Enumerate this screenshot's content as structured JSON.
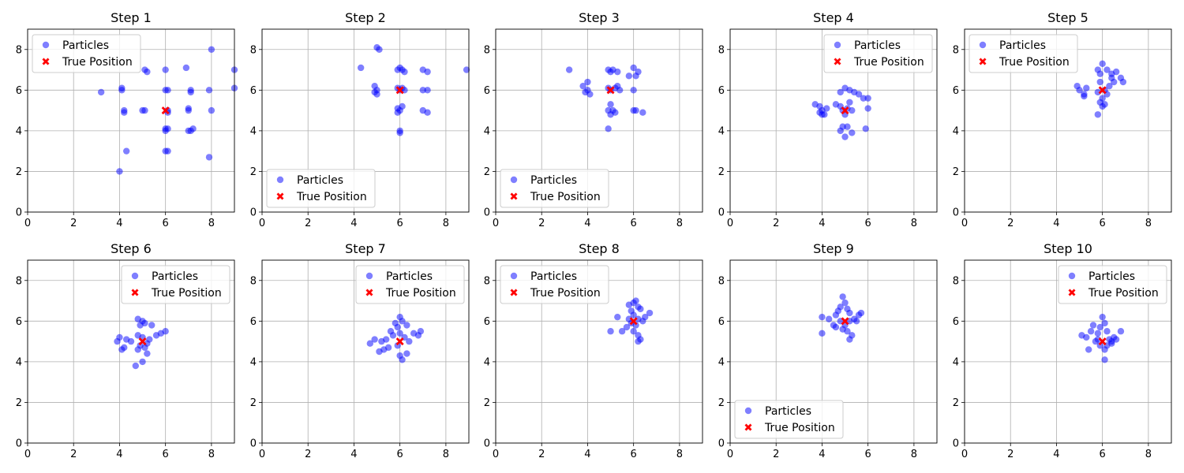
{
  "colors": {
    "particles": "#0000ff",
    "true_position": "#ff0000",
    "grid": "#b0b0b0",
    "axes": "#000000"
  },
  "legend_labels": {
    "particles": "Particles",
    "true_position": "True Position"
  },
  "chart_data": [
    {
      "type": "scatter",
      "title": "Step 1",
      "xlim": [
        0,
        9
      ],
      "ylim": [
        0,
        9
      ],
      "xticks": [
        0,
        2,
        4,
        6,
        8
      ],
      "yticks": [
        0,
        2,
        4,
        6,
        8
      ],
      "grid": true,
      "legend_position": "top-left",
      "true_position": [
        6,
        5
      ],
      "particles": [
        [
          3.2,
          5.9
        ],
        [
          4.1,
          6.1
        ],
        [
          4.1,
          6.0
        ],
        [
          4.2,
          5.0
        ],
        [
          4.2,
          4.9
        ],
        [
          4.3,
          3.0
        ],
        [
          4.0,
          2.0
        ],
        [
          5.0,
          5.0
        ],
        [
          5.1,
          5.0
        ],
        [
          5.1,
          7.0
        ],
        [
          5.2,
          6.9
        ],
        [
          6.0,
          7.0
        ],
        [
          6.0,
          6.0
        ],
        [
          6.1,
          6.0
        ],
        [
          6.0,
          4.1
        ],
        [
          6.0,
          4.0
        ],
        [
          6.1,
          4.1
        ],
        [
          6.0,
          3.0
        ],
        [
          6.1,
          3.0
        ],
        [
          6.1,
          4.9
        ],
        [
          6.1,
          5.0
        ],
        [
          6.9,
          7.1
        ],
        [
          7.0,
          5.1
        ],
        [
          7.0,
          5.0
        ],
        [
          7.1,
          6.0
        ],
        [
          7.1,
          5.9
        ],
        [
          7.0,
          4.0
        ],
        [
          7.1,
          4.0
        ],
        [
          7.2,
          4.1
        ],
        [
          7.9,
          2.7
        ],
        [
          7.9,
          6.0
        ],
        [
          8.0,
          8.0
        ],
        [
          8.0,
          5.0
        ],
        [
          9.0,
          7.0
        ],
        [
          9.0,
          6.1
        ]
      ]
    },
    {
      "type": "scatter",
      "title": "Step 2",
      "xlim": [
        0,
        9
      ],
      "ylim": [
        0,
        9
      ],
      "xticks": [
        0,
        2,
        4,
        6,
        8
      ],
      "yticks": [
        0,
        2,
        4,
        6,
        8
      ],
      "grid": true,
      "legend_position": "bottom-left",
      "true_position": [
        6,
        6
      ],
      "particles": [
        [
          4.3,
          7.1
        ],
        [
          4.9,
          6.2
        ],
        [
          5.0,
          6.0
        ],
        [
          4.9,
          5.9
        ],
        [
          5.0,
          5.8
        ],
        [
          5.1,
          8.0
        ],
        [
          5.0,
          8.1
        ],
        [
          5.9,
          7.0
        ],
        [
          6.0,
          7.1
        ],
        [
          6.1,
          7.0
        ],
        [
          6.2,
          6.9
        ],
        [
          5.9,
          6.1
        ],
        [
          6.0,
          6.0
        ],
        [
          6.1,
          6.1
        ],
        [
          6.2,
          6.0
        ],
        [
          5.9,
          5.1
        ],
        [
          6.0,
          5.0
        ],
        [
          6.1,
          5.2
        ],
        [
          5.9,
          4.9
        ],
        [
          6.0,
          4.0
        ],
        [
          6.0,
          3.9
        ],
        [
          7.0,
          7.0
        ],
        [
          7.2,
          6.9
        ],
        [
          7.0,
          6.0
        ],
        [
          7.2,
          6.0
        ],
        [
          7.0,
          5.0
        ],
        [
          7.2,
          4.9
        ],
        [
          8.9,
          7.0
        ]
      ]
    },
    {
      "type": "scatter",
      "title": "Step 3",
      "xlim": [
        0,
        9
      ],
      "ylim": [
        0,
        9
      ],
      "xticks": [
        0,
        2,
        4,
        6,
        8
      ],
      "yticks": [
        0,
        2,
        4,
        6,
        8
      ],
      "grid": true,
      "legend_position": "bottom-left",
      "true_position": [
        5,
        6
      ],
      "particles": [
        [
          3.2,
          7.0
        ],
        [
          3.8,
          6.2
        ],
        [
          3.9,
          5.9
        ],
        [
          4.0,
          6.4
        ],
        [
          4.1,
          5.8
        ],
        [
          4.0,
          6.0
        ],
        [
          4.9,
          7.0
        ],
        [
          5.0,
          6.9
        ],
        [
          5.1,
          7.0
        ],
        [
          5.3,
          6.9
        ],
        [
          4.9,
          6.1
        ],
        [
          5.0,
          6.0
        ],
        [
          5.2,
          6.1
        ],
        [
          5.3,
          6.2
        ],
        [
          5.4,
          6.0
        ],
        [
          5.0,
          5.3
        ],
        [
          5.1,
          5.0
        ],
        [
          4.9,
          5.0
        ],
        [
          5.0,
          4.8
        ],
        [
          5.2,
          4.9
        ],
        [
          4.9,
          4.1
        ],
        [
          5.8,
          6.7
        ],
        [
          6.0,
          7.1
        ],
        [
          6.2,
          6.9
        ],
        [
          6.1,
          6.7
        ],
        [
          6.0,
          6.0
        ],
        [
          6.1,
          5.0
        ],
        [
          6.0,
          5.0
        ],
        [
          6.4,
          4.9
        ]
      ]
    },
    {
      "type": "scatter",
      "title": "Step 4",
      "xlim": [
        0,
        9
      ],
      "ylim": [
        0,
        9
      ],
      "xticks": [
        0,
        2,
        4,
        6,
        8
      ],
      "yticks": [
        0,
        2,
        4,
        6,
        8
      ],
      "grid": true,
      "legend_position": "top-right",
      "true_position": [
        5,
        5
      ],
      "particles": [
        [
          3.7,
          5.3
        ],
        [
          3.9,
          5.2
        ],
        [
          3.9,
          4.9
        ],
        [
          4.0,
          5.0
        ],
        [
          4.1,
          4.8
        ],
        [
          4.2,
          5.1
        ],
        [
          4.0,
          4.8
        ],
        [
          4.6,
          5.3
        ],
        [
          4.8,
          5.2
        ],
        [
          4.9,
          5.0
        ],
        [
          5.0,
          4.8
        ],
        [
          5.1,
          5.1
        ],
        [
          5.2,
          5.4
        ],
        [
          5.3,
          5.0
        ],
        [
          4.8,
          5.9
        ],
        [
          5.0,
          6.1
        ],
        [
          5.2,
          6.0
        ],
        [
          5.4,
          5.9
        ],
        [
          5.6,
          5.8
        ],
        [
          5.8,
          5.6
        ],
        [
          4.9,
          4.2
        ],
        [
          5.1,
          4.2
        ],
        [
          4.8,
          4.0
        ],
        [
          5.0,
          3.7
        ],
        [
          5.3,
          3.9
        ],
        [
          5.9,
          4.1
        ],
        [
          6.0,
          5.1
        ],
        [
          6.0,
          5.6
        ]
      ]
    },
    {
      "type": "scatter",
      "title": "Step 5",
      "xlim": [
        0,
        9
      ],
      "ylim": [
        0,
        9
      ],
      "xticks": [
        0,
        2,
        4,
        6,
        8
      ],
      "yticks": [
        0,
        2,
        4,
        6,
        8
      ],
      "grid": true,
      "legend_position": "top-left",
      "true_position": [
        6,
        6
      ],
      "particles": [
        [
          4.9,
          6.2
        ],
        [
          5.0,
          6.0
        ],
        [
          5.2,
          5.8
        ],
        [
          5.3,
          6.1
        ],
        [
          5.2,
          5.7
        ],
        [
          5.8,
          7.0
        ],
        [
          5.9,
          6.8
        ],
        [
          6.0,
          7.3
        ],
        [
          6.2,
          7.0
        ],
        [
          6.4,
          6.8
        ],
        [
          6.6,
          6.9
        ],
        [
          6.8,
          6.6
        ],
        [
          6.9,
          6.4
        ],
        [
          5.9,
          6.4
        ],
        [
          6.1,
          6.0
        ],
        [
          6.3,
          6.2
        ],
        [
          6.5,
          6.4
        ],
        [
          5.8,
          5.9
        ],
        [
          6.0,
          5.6
        ],
        [
          6.2,
          5.8
        ],
        [
          5.9,
          5.4
        ],
        [
          6.0,
          5.2
        ],
        [
          6.1,
          5.3
        ],
        [
          5.8,
          4.8
        ],
        [
          6.4,
          6.6
        ]
      ]
    },
    {
      "type": "scatter",
      "title": "Step 6",
      "xlim": [
        0,
        9
      ],
      "ylim": [
        0,
        9
      ],
      "xticks": [
        0,
        2,
        4,
        6,
        8
      ],
      "yticks": [
        0,
        2,
        4,
        6,
        8
      ],
      "grid": true,
      "legend_position": "top-right",
      "true_position": [
        5,
        5
      ],
      "particles": [
        [
          3.9,
          5.0
        ],
        [
          4.0,
          5.2
        ],
        [
          4.2,
          4.7
        ],
        [
          4.3,
          5.1
        ],
        [
          4.1,
          4.6
        ],
        [
          4.8,
          6.1
        ],
        [
          5.0,
          6.0
        ],
        [
          4.9,
          5.8
        ],
        [
          5.1,
          5.9
        ],
        [
          5.4,
          5.8
        ],
        [
          4.8,
          5.3
        ],
        [
          5.0,
          5.2
        ],
        [
          5.3,
          5.1
        ],
        [
          5.6,
          5.3
        ],
        [
          5.8,
          5.4
        ],
        [
          6.0,
          5.5
        ],
        [
          4.9,
          4.8
        ],
        [
          5.1,
          4.7
        ],
        [
          5.2,
          4.4
        ],
        [
          4.8,
          4.6
        ],
        [
          5.0,
          4.0
        ],
        [
          4.7,
          3.8
        ],
        [
          5.2,
          4.9
        ],
        [
          4.5,
          5.0
        ]
      ]
    },
    {
      "type": "scatter",
      "title": "Step 7",
      "xlim": [
        0,
        9
      ],
      "ylim": [
        0,
        9
      ],
      "xticks": [
        0,
        2,
        4,
        6,
        8
      ],
      "yticks": [
        0,
        2,
        4,
        6,
        8
      ],
      "grid": true,
      "legend_position": "top-right",
      "true_position": [
        6,
        5
      ],
      "particles": [
        [
          4.7,
          4.9
        ],
        [
          4.9,
          5.1
        ],
        [
          5.1,
          4.5
        ],
        [
          5.3,
          4.6
        ],
        [
          5.5,
          4.7
        ],
        [
          5.2,
          5.0
        ],
        [
          5.4,
          5.1
        ],
        [
          5.7,
          5.3
        ],
        [
          5.8,
          5.9
        ],
        [
          5.9,
          5.7
        ],
        [
          6.0,
          6.2
        ],
        [
          6.1,
          6.0
        ],
        [
          6.3,
          5.8
        ],
        [
          6.0,
          5.4
        ],
        [
          6.2,
          5.2
        ],
        [
          6.4,
          5.0
        ],
        [
          6.6,
          5.4
        ],
        [
          6.9,
          5.5
        ],
        [
          5.9,
          4.8
        ],
        [
          6.0,
          4.3
        ],
        [
          6.1,
          4.1
        ],
        [
          6.3,
          4.4
        ],
        [
          5.6,
          5.5
        ],
        [
          6.8,
          5.3
        ]
      ]
    },
    {
      "type": "scatter",
      "title": "Step 8",
      "xlim": [
        0,
        9
      ],
      "ylim": [
        0,
        9
      ],
      "xticks": [
        0,
        2,
        4,
        6,
        8
      ],
      "yticks": [
        0,
        2,
        4,
        6,
        8
      ],
      "grid": true,
      "legend_position": "top-left",
      "true_position": [
        6,
        6
      ],
      "particles": [
        [
          5.0,
          5.5
        ],
        [
          5.3,
          6.2
        ],
        [
          5.5,
          5.5
        ],
        [
          5.7,
          5.7
        ],
        [
          5.8,
          6.1
        ],
        [
          5.9,
          6.5
        ],
        [
          6.0,
          6.9
        ],
        [
          6.1,
          7.0
        ],
        [
          6.2,
          6.7
        ],
        [
          5.8,
          6.8
        ],
        [
          6.0,
          6.3
        ],
        [
          6.2,
          6.1
        ],
        [
          6.4,
          6.0
        ],
        [
          6.3,
          6.6
        ],
        [
          6.5,
          6.2
        ],
        [
          6.7,
          6.4
        ],
        [
          6.1,
          5.8
        ],
        [
          6.0,
          5.5
        ],
        [
          6.2,
          5.3
        ],
        [
          6.3,
          5.1
        ],
        [
          6.2,
          5.0
        ],
        [
          5.9,
          5.9
        ]
      ]
    },
    {
      "type": "scatter",
      "title": "Step 9",
      "xlim": [
        0,
        9
      ],
      "ylim": [
        0,
        9
      ],
      "xticks": [
        0,
        2,
        4,
        6,
        8
      ],
      "yticks": [
        0,
        2,
        4,
        6,
        8
      ],
      "grid": true,
      "legend_position": "bottom-left",
      "true_position": [
        5,
        6
      ],
      "particles": [
        [
          4.0,
          6.2
        ],
        [
          4.0,
          5.4
        ],
        [
          4.3,
          6.1
        ],
        [
          4.5,
          5.8
        ],
        [
          4.6,
          6.3
        ],
        [
          4.7,
          6.5
        ],
        [
          4.8,
          6.7
        ],
        [
          4.9,
          7.2
        ],
        [
          5.0,
          6.9
        ],
        [
          5.1,
          6.6
        ],
        [
          5.2,
          6.4
        ],
        [
          4.8,
          6.0
        ],
        [
          5.0,
          5.8
        ],
        [
          5.2,
          6.0
        ],
        [
          5.4,
          6.1
        ],
        [
          5.6,
          6.3
        ],
        [
          5.7,
          6.4
        ],
        [
          4.9,
          5.6
        ],
        [
          5.1,
          5.5
        ],
        [
          5.3,
          5.3
        ],
        [
          5.2,
          5.1
        ],
        [
          4.6,
          5.7
        ],
        [
          5.5,
          6.0
        ]
      ]
    },
    {
      "type": "scatter",
      "title": "Step 10",
      "xlim": [
        0,
        9
      ],
      "ylim": [
        0,
        9
      ],
      "xticks": [
        0,
        2,
        4,
        6,
        8
      ],
      "yticks": [
        0,
        2,
        4,
        6,
        8
      ],
      "grid": true,
      "legend_position": "top-right",
      "true_position": [
        6,
        5
      ],
      "particles": [
        [
          5.1,
          5.3
        ],
        [
          5.3,
          5.2
        ],
        [
          5.4,
          4.6
        ],
        [
          5.5,
          5.5
        ],
        [
          5.6,
          5.8
        ],
        [
          5.7,
          5.0
        ],
        [
          5.8,
          5.4
        ],
        [
          5.9,
          5.7
        ],
        [
          6.0,
          6.2
        ],
        [
          6.1,
          5.9
        ],
        [
          6.2,
          5.5
        ],
        [
          6.3,
          5.1
        ],
        [
          5.9,
          4.8
        ],
        [
          6.1,
          4.6
        ],
        [
          6.2,
          4.8
        ],
        [
          6.4,
          5.0
        ],
        [
          6.5,
          5.2
        ],
        [
          6.6,
          5.1
        ],
        [
          6.8,
          5.5
        ],
        [
          6.1,
          4.1
        ],
        [
          5.8,
          5.1
        ],
        [
          6.4,
          4.9
        ]
      ]
    }
  ]
}
